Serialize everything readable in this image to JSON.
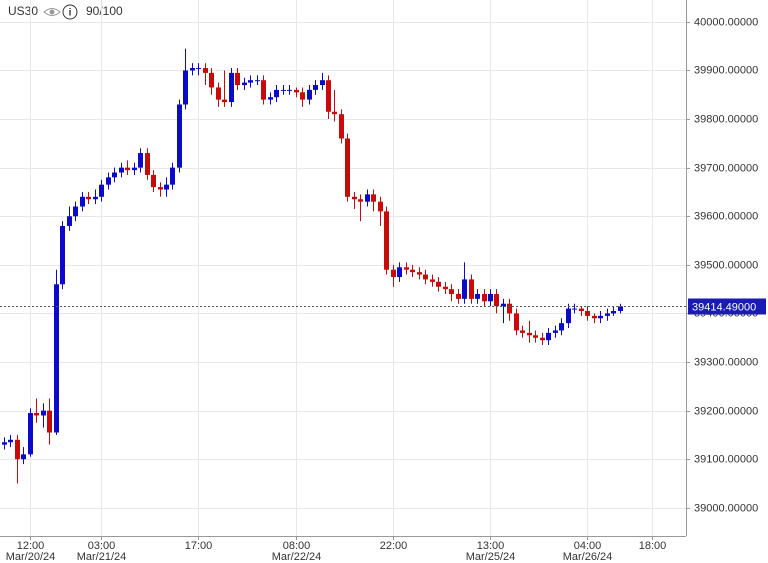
{
  "header": {
    "symbol": "US30",
    "rating": "90/100"
  },
  "chart_data": {
    "type": "candlestick",
    "categories": [
      null,
      null,
      null,
      null,
      "12:00",
      null,
      null,
      null,
      null,
      null,
      null,
      null,
      null,
      null,
      null,
      "03:00",
      null,
      null,
      null,
      null,
      null,
      null,
      null,
      null,
      null,
      null,
      null,
      null,
      null,
      null,
      "17:00",
      null,
      null,
      null,
      null,
      null,
      null,
      null,
      null,
      null,
      null,
      null,
      null,
      null,
      null,
      "08:00",
      null,
      null,
      null,
      null,
      null,
      null,
      null,
      null,
      null,
      null,
      null,
      null,
      null,
      null,
      "22:00",
      null,
      null,
      null,
      null,
      null,
      null,
      null,
      null,
      null,
      null,
      null,
      null,
      null,
      null,
      "13:00",
      null,
      null,
      null,
      null,
      null,
      null,
      null,
      null,
      null,
      null,
      null,
      null,
      null,
      null,
      "04:00",
      null,
      null,
      null,
      null,
      null,
      null,
      null,
      null,
      null,
      "18:00"
    ],
    "dates": [
      null,
      null,
      null,
      null,
      "Mar/20/24",
      null,
      null,
      null,
      null,
      null,
      null,
      null,
      null,
      null,
      null,
      "Mar/21/24",
      null,
      null,
      null,
      null,
      null,
      null,
      null,
      null,
      null,
      null,
      null,
      null,
      null,
      null,
      null,
      null,
      null,
      null,
      null,
      null,
      null,
      null,
      null,
      null,
      null,
      null,
      null,
      null,
      null,
      "Mar/22/24",
      null,
      null,
      null,
      null,
      null,
      null,
      null,
      null,
      null,
      null,
      null,
      null,
      null,
      null,
      null,
      null,
      null,
      null,
      null,
      null,
      null,
      null,
      null,
      null,
      null,
      null,
      null,
      null,
      null,
      "Mar/25/24",
      null,
      null,
      null,
      null,
      null,
      null,
      null,
      null,
      null,
      null,
      null,
      null,
      null,
      null,
      "Mar/26/24",
      null,
      null,
      null,
      null,
      null,
      null,
      null,
      null,
      null,
      null
    ],
    "open": [
      39130,
      39135,
      39140,
      39100,
      39110,
      39195,
      39190,
      39200,
      39155,
      39460,
      39580,
      39600,
      39620,
      39640,
      39635,
      39640,
      39665,
      39680,
      39690,
      39700,
      39695,
      39700,
      39730,
      39685,
      39660,
      39655,
      39665,
      39700,
      39830,
      39900,
      39905,
      39905,
      39895,
      39865,
      39840,
      39835,
      39895,
      39870,
      39875,
      39880,
      39880,
      39840,
      39845,
      39860,
      39860,
      39860,
      39855,
      39840,
      39860,
      39870,
      39880,
      39815,
      39810,
      39760,
      39640,
      39635,
      39630,
      39645,
      39630,
      39610,
      39490,
      39475,
      39495,
      39490,
      39485,
      39480,
      39470,
      39465,
      39455,
      39450,
      39440,
      39430,
      39470,
      39430,
      39440,
      39425,
      39440,
      39415,
      39420,
      39400,
      39365,
      39360,
      39355,
      39350,
      39345,
      39360,
      39365,
      39380,
      39410,
      39410,
      39405,
      39395,
      39390,
      39395,
      39400,
      39405,
      null,
      null,
      null,
      null,
      null
    ],
    "high": [
      39145,
      39150,
      39150,
      39125,
      39205,
      39225,
      39215,
      39225,
      39490,
      39590,
      39620,
      39630,
      39650,
      39650,
      39655,
      39675,
      39690,
      39700,
      39710,
      39715,
      39710,
      39740,
      39740,
      39695,
      39670,
      39680,
      39710,
      39840,
      39945,
      39915,
      39915,
      39915,
      39905,
      39875,
      39900,
      39905,
      39905,
      39885,
      39890,
      39890,
      39890,
      39855,
      39870,
      39870,
      39870,
      39865,
      39865,
      39870,
      39880,
      39895,
      39890,
      39860,
      39820,
      39770,
      39650,
      39645,
      39655,
      39655,
      39640,
      39620,
      39500,
      39505,
      39505,
      39500,
      39495,
      39490,
      39480,
      39475,
      39465,
      39460,
      39450,
      39505,
      39480,
      39450,
      39450,
      39450,
      39450,
      39430,
      39430,
      39410,
      39375,
      39385,
      39365,
      39360,
      39370,
      39375,
      39390,
      39420,
      39420,
      39415,
      39415,
      39400,
      39405,
      39410,
      39415,
      39420,
      null,
      null,
      null,
      null,
      null
    ],
    "low": [
      39120,
      39125,
      39050,
      39090,
      39105,
      39175,
      39165,
      39130,
      39150,
      39450,
      39570,
      39590,
      39610,
      39625,
      39625,
      39630,
      39655,
      39670,
      39680,
      39685,
      39685,
      39690,
      39675,
      39650,
      39640,
      39640,
      39655,
      39690,
      39820,
      39890,
      39890,
      39870,
      39850,
      39825,
      39825,
      39825,
      39860,
      39860,
      39865,
      39870,
      39830,
      39830,
      39835,
      39850,
      39850,
      39845,
      39825,
      39830,
      39850,
      39860,
      39800,
      39795,
      39750,
      39630,
      39615,
      39590,
      39620,
      39610,
      39580,
      39480,
      39455,
      39465,
      39480,
      39475,
      39470,
      39460,
      39455,
      39445,
      39440,
      39425,
      39420,
      39420,
      39420,
      39420,
      39415,
      39415,
      39400,
      39380,
      39385,
      39355,
      39350,
      39340,
      39340,
      39335,
      39335,
      39350,
      39355,
      39370,
      39400,
      39395,
      39385,
      39380,
      39380,
      39385,
      39395,
      39400,
      null,
      null,
      null,
      null,
      null
    ],
    "close": [
      39135,
      39140,
      39100,
      39110,
      39195,
      39190,
      39200,
      39155,
      39460,
      39580,
      39600,
      39620,
      39640,
      39635,
      39640,
      39665,
      39680,
      39690,
      39700,
      39695,
      39700,
      39730,
      39685,
      39660,
      39655,
      39665,
      39700,
      39830,
      39900,
      39905,
      39905,
      39895,
      39865,
      39840,
      39835,
      39895,
      39870,
      39875,
      39880,
      39880,
      39840,
      39845,
      39860,
      39860,
      39860,
      39855,
      39840,
      39860,
      39870,
      39880,
      39815,
      39810,
      39760,
      39640,
      39635,
      39630,
      39645,
      39630,
      39610,
      39490,
      39475,
      39495,
      39490,
      39485,
      39480,
      39470,
      39465,
      39455,
      39450,
      39440,
      39430,
      39470,
      39430,
      39440,
      39425,
      39440,
      39415,
      39420,
      39400,
      39365,
      39360,
      39355,
      39350,
      39345,
      39360,
      39365,
      39380,
      39410,
      39410,
      39405,
      39395,
      39390,
      39395,
      39400,
      39405,
      39414.49,
      null,
      null,
      null,
      null,
      null
    ],
    "up_color": "#0a0ac8",
    "down_color": "#c80a0a",
    "last_price": {
      "value": 39414.49,
      "label": "39414.49000"
    },
    "ylim": [
      38942,
      40045
    ],
    "yticks": [
      {
        "value": 39000,
        "label": "39000.00000"
      },
      {
        "value": 39100,
        "label": "39100.00000"
      },
      {
        "value": 39200,
        "label": "39200.00000"
      },
      {
        "value": 39300,
        "label": "39300.00000"
      },
      {
        "value": 39400,
        "label": "39400.00000"
      },
      {
        "value": 39500,
        "label": "39500.00000"
      },
      {
        "value": 39600,
        "label": "39600.00000"
      },
      {
        "value": 39700,
        "label": "39700.00000"
      },
      {
        "value": 39800,
        "label": "39800.00000"
      },
      {
        "value": 39900,
        "label": "39900.00000"
      },
      {
        "value": 40000,
        "label": "40000.00000"
      }
    ],
    "grid": true
  }
}
